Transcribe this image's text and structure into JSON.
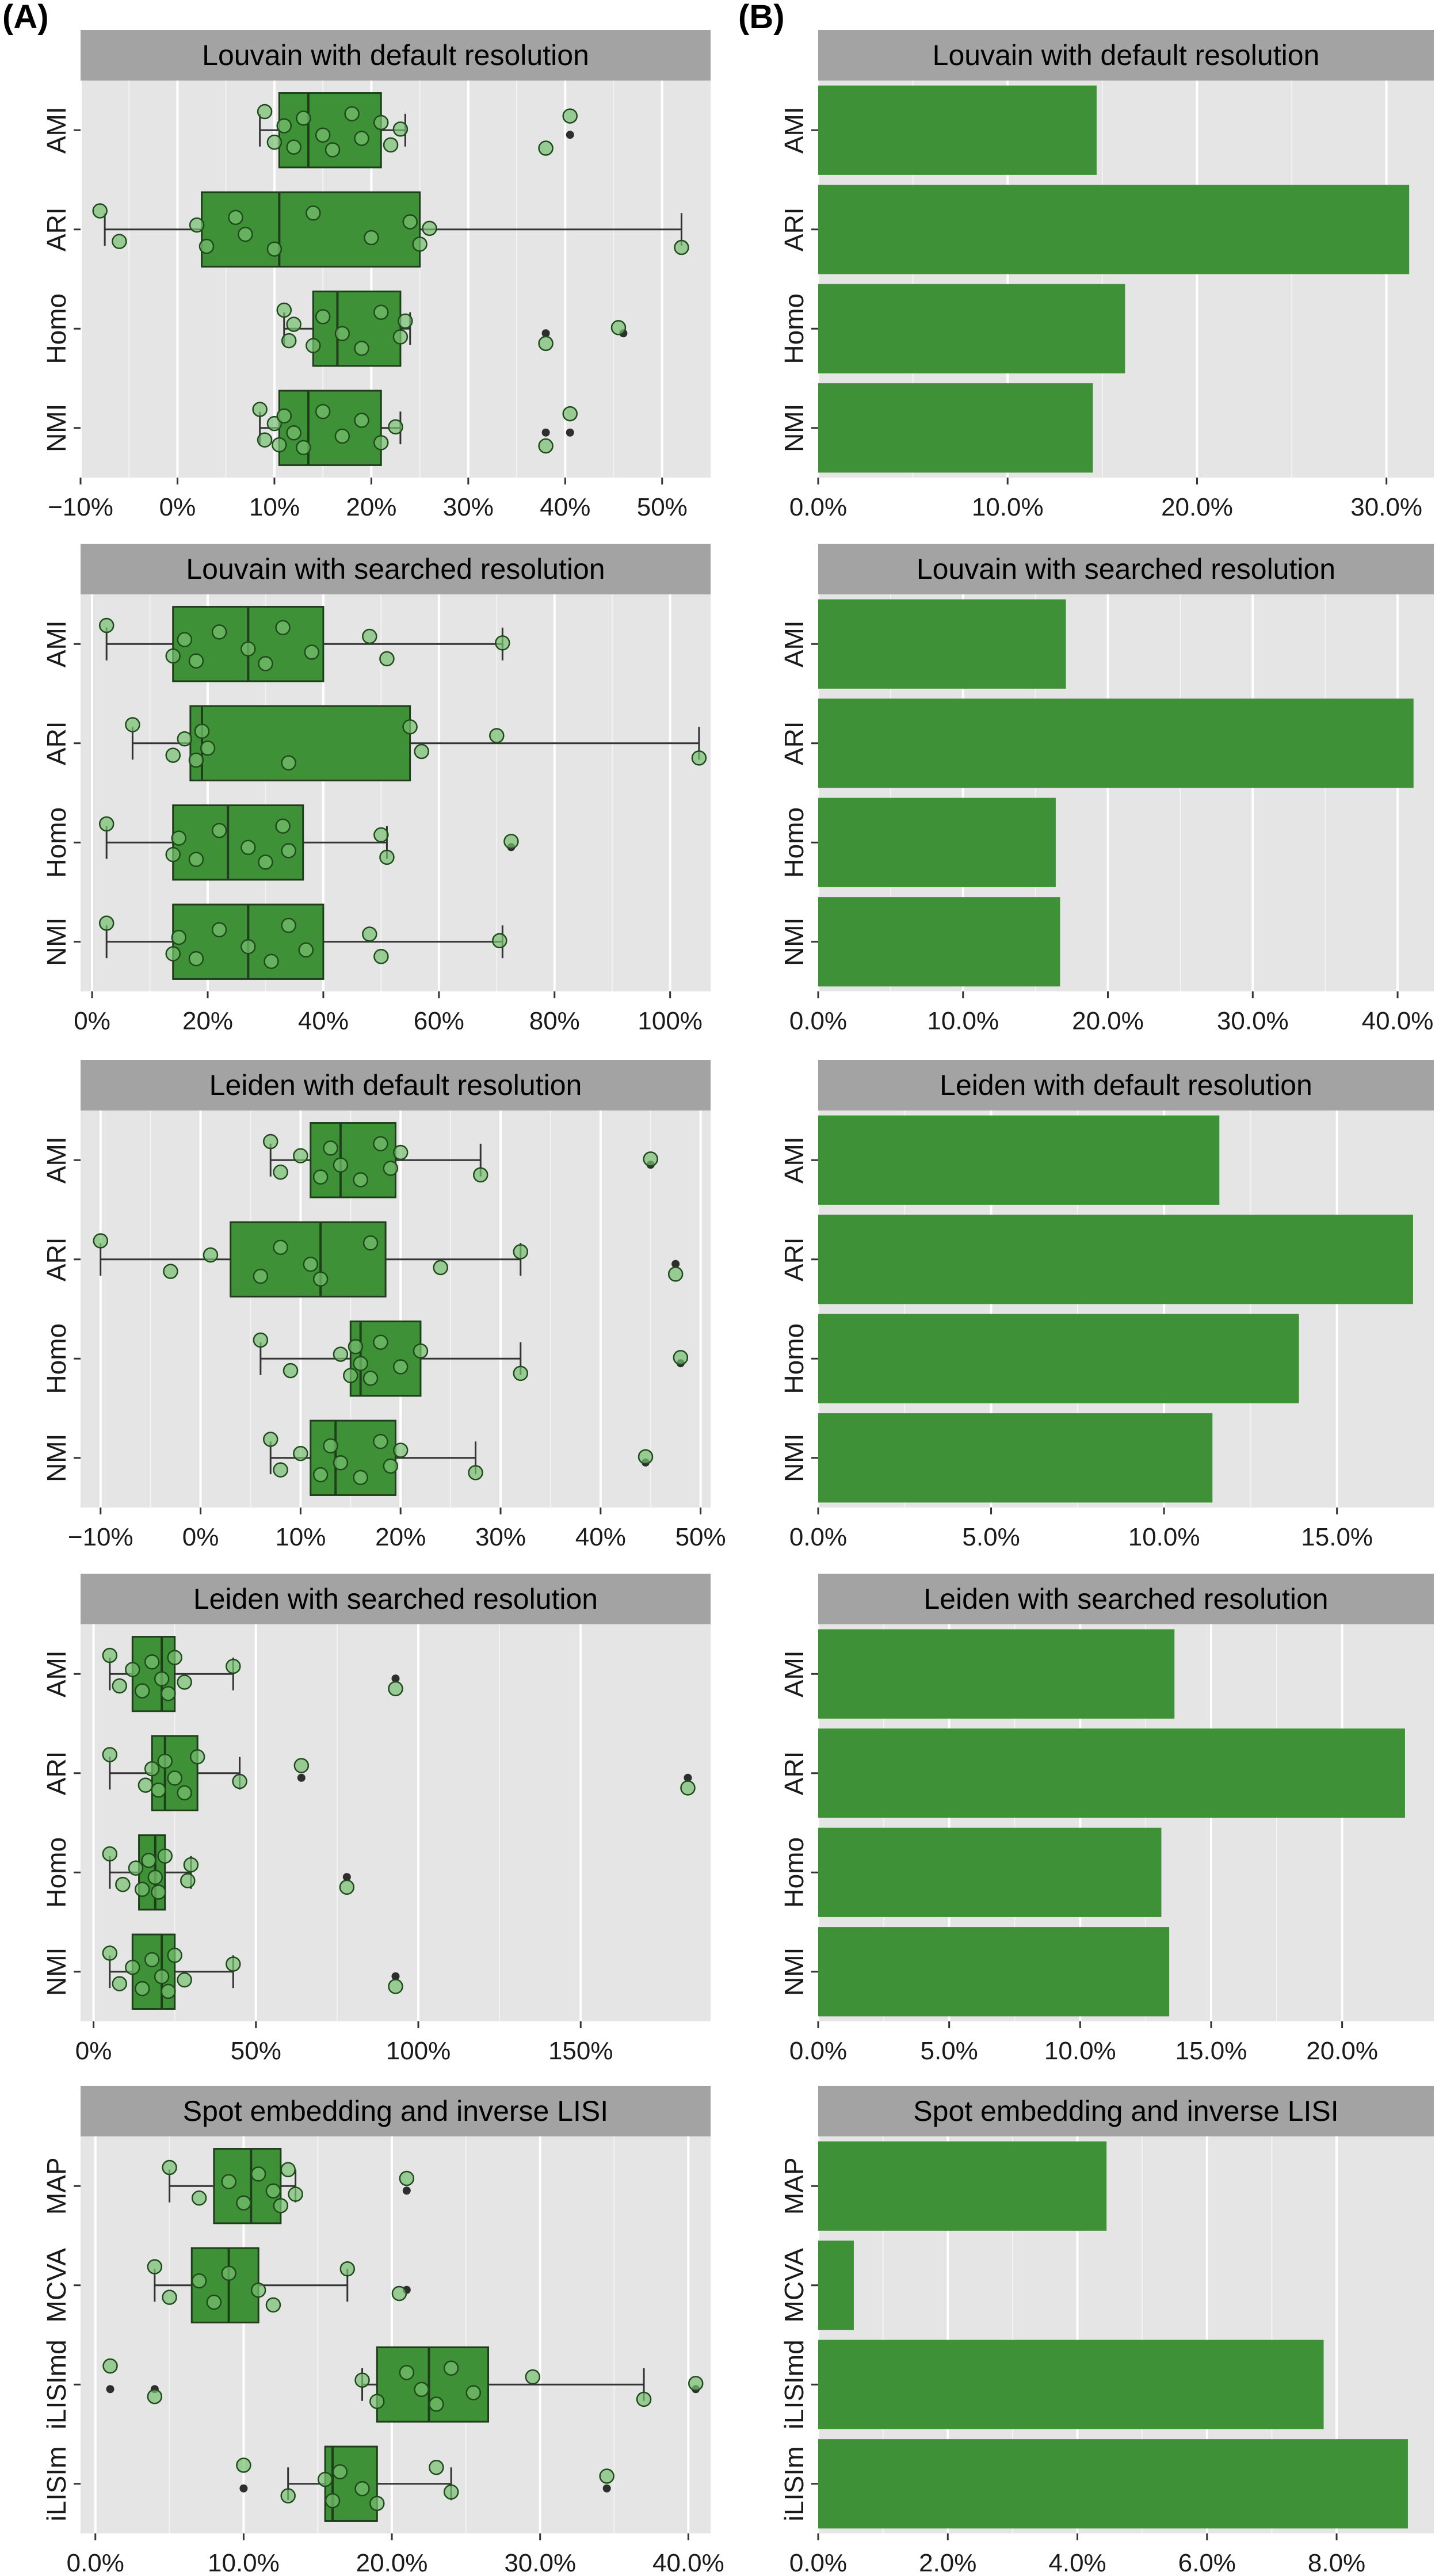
{
  "panel_labels": [
    "(A)",
    "(B)"
  ],
  "colors": {
    "panel_bg": "#e5e5e5",
    "strip_bg": "#a3a3a3",
    "grid": "#ffffff",
    "box_fill": "#3f9137",
    "box_edge": "#1e3d1b",
    "point_fill": "#78c070",
    "bar_fill": "#3f9137",
    "outlier": "#2e2e2e",
    "text": "#000000",
    "axis_text": "#1a1a1a"
  },
  "chart_data": [
    {
      "type": "box",
      "panel": "A",
      "title": "Louvain with default resolution",
      "categories": [
        "AMI",
        "ARI",
        "Homo",
        "NMI"
      ],
      "xlim": [
        -10,
        55
      ],
      "ticks": [
        -10,
        0,
        10,
        20,
        30,
        40,
        50
      ],
      "tick_labels": [
        "−10%",
        "0%",
        "10%",
        "20%",
        "30%",
        "40%",
        "50%"
      ],
      "boxes": [
        {
          "q1": 10.5,
          "median": 13.5,
          "q3": 21.0,
          "wlo": 8.5,
          "whi": 23.5,
          "outliers": [
            40.5
          ]
        },
        {
          "q1": 2.5,
          "median": 10.5,
          "q3": 25.0,
          "wlo": -7.5,
          "whi": 52.0,
          "outliers": []
        },
        {
          "q1": 14.0,
          "median": 16.5,
          "q3": 23.0,
          "wlo": 11.0,
          "whi": 24.0,
          "outliers": [
            38.0,
            46.0
          ]
        },
        {
          "q1": 10.5,
          "median": 13.5,
          "q3": 21.0,
          "wlo": 8.5,
          "whi": 23.0,
          "outliers": [
            38.0,
            40.5
          ]
        }
      ],
      "points": [
        [
          9,
          10,
          11,
          12,
          13,
          15,
          16,
          18,
          19,
          21,
          22,
          23,
          38,
          40.5
        ],
        [
          -8,
          -6,
          2,
          3,
          6,
          7,
          10,
          14,
          20,
          24,
          25,
          26,
          52
        ],
        [
          11,
          11.5,
          12,
          14,
          15,
          17,
          19,
          21,
          23,
          23.5,
          38,
          45.5
        ],
        [
          8.5,
          9,
          10,
          10.5,
          11,
          12,
          13,
          15,
          17,
          19,
          21,
          22.5,
          38,
          40.5
        ]
      ]
    },
    {
      "type": "bar",
      "panel": "B",
      "title": "Louvain with default resolution",
      "categories": [
        "AMI",
        "ARI",
        "Homo",
        "NMI"
      ],
      "values": [
        14.7,
        31.2,
        16.2,
        14.5
      ],
      "xlim": [
        0,
        32.5
      ],
      "ticks": [
        0,
        10,
        20,
        30
      ],
      "tick_labels": [
        "0.0%",
        "10.0%",
        "20.0%",
        "30.0%"
      ]
    },
    {
      "type": "box",
      "panel": "A",
      "title": "Louvain with searched resolution",
      "categories": [
        "AMI",
        "ARI",
        "Homo",
        "NMI"
      ],
      "xlim": [
        -2,
        107
      ],
      "ticks": [
        0,
        20,
        40,
        60,
        80,
        100
      ],
      "tick_labels": [
        "0%",
        "20%",
        "40%",
        "60%",
        "80%",
        "100%"
      ],
      "boxes": [
        {
          "q1": 14.0,
          "median": 27.0,
          "q3": 40.0,
          "wlo": 2.5,
          "whi": 71.0,
          "outliers": []
        },
        {
          "q1": 17.0,
          "median": 19.0,
          "q3": 55.0,
          "wlo": 7.0,
          "whi": 105.0,
          "outliers": []
        },
        {
          "q1": 14.0,
          "median": 23.5,
          "q3": 36.5,
          "wlo": 2.5,
          "whi": 51.0,
          "outliers": [
            72.5
          ]
        },
        {
          "q1": 14.0,
          "median": 27.0,
          "q3": 40.0,
          "wlo": 2.5,
          "whi": 71.0,
          "outliers": []
        }
      ],
      "points": [
        [
          2.5,
          14,
          16,
          18,
          22,
          27,
          30,
          33,
          38,
          48,
          51,
          71
        ],
        [
          7,
          14,
          16,
          18,
          19,
          20,
          34,
          55,
          57,
          70,
          105
        ],
        [
          2.5,
          14,
          15,
          18,
          22,
          27,
          30,
          33,
          34,
          50,
          51,
          72.5
        ],
        [
          2.5,
          14,
          15,
          18,
          22,
          27,
          31,
          34,
          37,
          48,
          50,
          70.5
        ]
      ]
    },
    {
      "type": "bar",
      "panel": "B",
      "title": "Louvain with searched resolution",
      "categories": [
        "AMI",
        "ARI",
        "Homo",
        "NMI"
      ],
      "values": [
        17.1,
        41.1,
        16.4,
        16.7
      ],
      "xlim": [
        0,
        42.5
      ],
      "ticks": [
        0,
        10,
        20,
        30,
        40
      ],
      "tick_labels": [
        "0.0%",
        "10.0%",
        "20.0%",
        "30.0%",
        "40.0%"
      ]
    },
    {
      "type": "box",
      "panel": "A",
      "title": "Leiden with default resolution",
      "categories": [
        "AMI",
        "ARI",
        "Homo",
        "NMI"
      ],
      "xlim": [
        -12,
        51
      ],
      "ticks": [
        -10,
        0,
        10,
        20,
        30,
        40,
        50
      ],
      "tick_labels": [
        "−10%",
        "0%",
        "10%",
        "20%",
        "30%",
        "40%",
        "50%"
      ],
      "boxes": [
        {
          "q1": 11.0,
          "median": 14.0,
          "q3": 19.5,
          "wlo": 7.0,
          "whi": 28.0,
          "outliers": [
            45.0
          ]
        },
        {
          "q1": 3.0,
          "median": 12.0,
          "q3": 18.5,
          "wlo": -10.0,
          "whi": 32.0,
          "outliers": [
            47.5
          ]
        },
        {
          "q1": 15.0,
          "median": 16.0,
          "q3": 22.0,
          "wlo": 6.0,
          "whi": 32.0,
          "outliers": [
            48.0
          ]
        },
        {
          "q1": 11.0,
          "median": 13.5,
          "q3": 19.5,
          "wlo": 7.0,
          "whi": 27.5,
          "outliers": [
            44.5
          ]
        }
      ],
      "points": [
        [
          7,
          8,
          10,
          12,
          13,
          14,
          16,
          18,
          19,
          20,
          28,
          45
        ],
        [
          -10,
          -3,
          1,
          6,
          8,
          11,
          12,
          17,
          24,
          32,
          47.5
        ],
        [
          6,
          9,
          14,
          15,
          15.5,
          16,
          17,
          18,
          20,
          22,
          32,
          48
        ],
        [
          7,
          8,
          10,
          12,
          13,
          14,
          16,
          18,
          19,
          20,
          27.5,
          44.5
        ]
      ]
    },
    {
      "type": "bar",
      "panel": "B",
      "title": "Leiden with default resolution",
      "categories": [
        "AMI",
        "ARI",
        "Homo",
        "NMI"
      ],
      "values": [
        11.6,
        17.2,
        13.9,
        11.4
      ],
      "xlim": [
        0,
        17.8
      ],
      "ticks": [
        0,
        5,
        10,
        15
      ],
      "tick_labels": [
        "0.0%",
        "5.0%",
        "10.0%",
        "15.0%"
      ]
    },
    {
      "type": "box",
      "panel": "A",
      "title": "Leiden with searched resolution",
      "categories": [
        "AMI",
        "ARI",
        "Homo",
        "NMI"
      ],
      "xlim": [
        -4,
        190
      ],
      "ticks": [
        0,
        50,
        100,
        150
      ],
      "tick_labels": [
        "0%",
        "50%",
        "100%",
        "150%"
      ],
      "boxes": [
        {
          "q1": 12.0,
          "median": 21.0,
          "q3": 25.0,
          "wlo": 5.0,
          "whi": 43.0,
          "outliers": [
            93.0
          ]
        },
        {
          "q1": 18.0,
          "median": 22.0,
          "q3": 32.0,
          "wlo": 5.0,
          "whi": 45.0,
          "outliers": [
            64.0,
            183.0
          ]
        },
        {
          "q1": 14.0,
          "median": 19.0,
          "q3": 22.0,
          "wlo": 5.0,
          "whi": 30.0,
          "outliers": [
            78.0
          ]
        },
        {
          "q1": 12.0,
          "median": 21.0,
          "q3": 25.0,
          "wlo": 5.0,
          "whi": 43.0,
          "outliers": [
            93.0
          ]
        }
      ],
      "points": [
        [
          5,
          8,
          12,
          15,
          18,
          21,
          23,
          25,
          28,
          43,
          93
        ],
        [
          5,
          16,
          18,
          20,
          22,
          25,
          28,
          32,
          45,
          64,
          183
        ],
        [
          5,
          9,
          13,
          15,
          17,
          19,
          20,
          22,
          29,
          30,
          78
        ],
        [
          5,
          8,
          12,
          15,
          18,
          21,
          23,
          25,
          28,
          43,
          93
        ]
      ]
    },
    {
      "type": "bar",
      "panel": "B",
      "title": "Leiden with searched resolution",
      "categories": [
        "AMI",
        "ARI",
        "Homo",
        "NMI"
      ],
      "values": [
        13.6,
        22.4,
        13.1,
        13.4
      ],
      "xlim": [
        0,
        23.5
      ],
      "ticks": [
        0,
        5,
        10,
        15,
        20
      ],
      "tick_labels": [
        "0.0%",
        "5.0%",
        "10.0%",
        "15.0%",
        "20.0%"
      ]
    },
    {
      "type": "box",
      "panel": "A",
      "title": "Spot embedding and inverse LISI",
      "categories": [
        "MAP",
        "MCVA",
        "iLISImd",
        "iLISIm"
      ],
      "xlim": [
        -1,
        41.5
      ],
      "ticks": [
        0,
        10,
        20,
        30,
        40
      ],
      "tick_labels": [
        "0.0%",
        "10.0%",
        "20.0%",
        "30.0%",
        "40.0%"
      ],
      "boxes": [
        {
          "q1": 8.0,
          "median": 10.5,
          "q3": 12.5,
          "wlo": 5.0,
          "whi": 13.5,
          "outliers": [
            21.0
          ]
        },
        {
          "q1": 6.5,
          "median": 9.0,
          "q3": 11.0,
          "wlo": 4.0,
          "whi": 17.0,
          "outliers": [
            21.0
          ]
        },
        {
          "q1": 19.0,
          "median": 22.5,
          "q3": 26.5,
          "wlo": 18.0,
          "whi": 37.0,
          "outliers": [
            1.0,
            4.0,
            40.5
          ]
        },
        {
          "q1": 15.5,
          "median": 16.0,
          "q3": 19.0,
          "wlo": 13.0,
          "whi": 24.0,
          "outliers": [
            10.0,
            34.5
          ]
        }
      ],
      "points": [
        [
          5,
          7,
          9,
          10,
          11,
          12,
          12.5,
          13,
          13.5,
          21
        ],
        [
          4,
          5,
          7,
          8,
          9,
          11,
          12,
          17,
          20.5
        ],
        [
          1,
          4,
          18,
          19,
          21,
          22,
          23,
          24,
          25.5,
          29.5,
          37,
          40.5
        ],
        [
          10,
          13,
          15.5,
          16,
          16.5,
          18,
          19,
          23,
          24,
          34.5
        ]
      ]
    },
    {
      "type": "bar",
      "panel": "B",
      "title": "Spot embedding and inverse LISI",
      "categories": [
        "MAP",
        "MCVA",
        "iLISImd",
        "iLISIm"
      ],
      "values": [
        4.45,
        0.55,
        7.8,
        9.1
      ],
      "xlim": [
        0,
        9.5
      ],
      "ticks": [
        0,
        2,
        4,
        6,
        8
      ],
      "tick_labels": [
        "0.0%",
        "2.0%",
        "4.0%",
        "6.0%",
        "8.0%"
      ]
    }
  ]
}
